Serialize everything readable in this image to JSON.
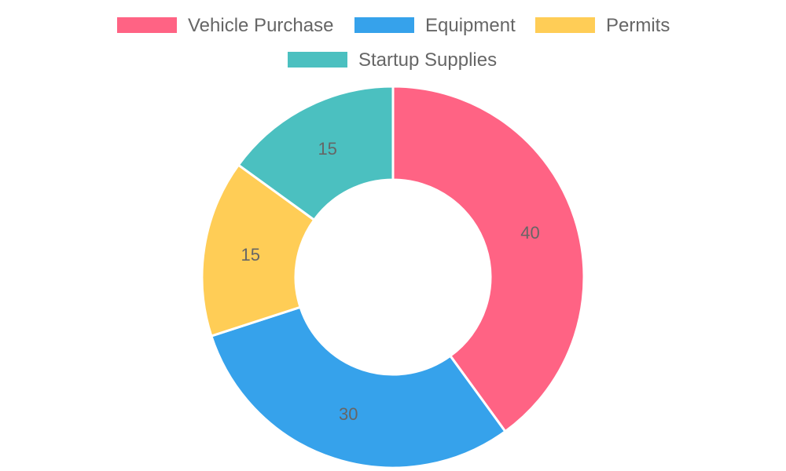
{
  "chart_data": {
    "type": "doughnut",
    "series": [
      {
        "name": "Vehicle Purchase",
        "value": 40,
        "color": "#ff6384"
      },
      {
        "name": "Equipment",
        "value": 30,
        "color": "#36a2eb"
      },
      {
        "name": "Permits",
        "value": 15,
        "color": "#ffcd56"
      },
      {
        "name": "Startup Supplies",
        "value": 15,
        "color": "#4bc0c0"
      }
    ],
    "legend_position": "top",
    "show_slice_labels": true
  }
}
